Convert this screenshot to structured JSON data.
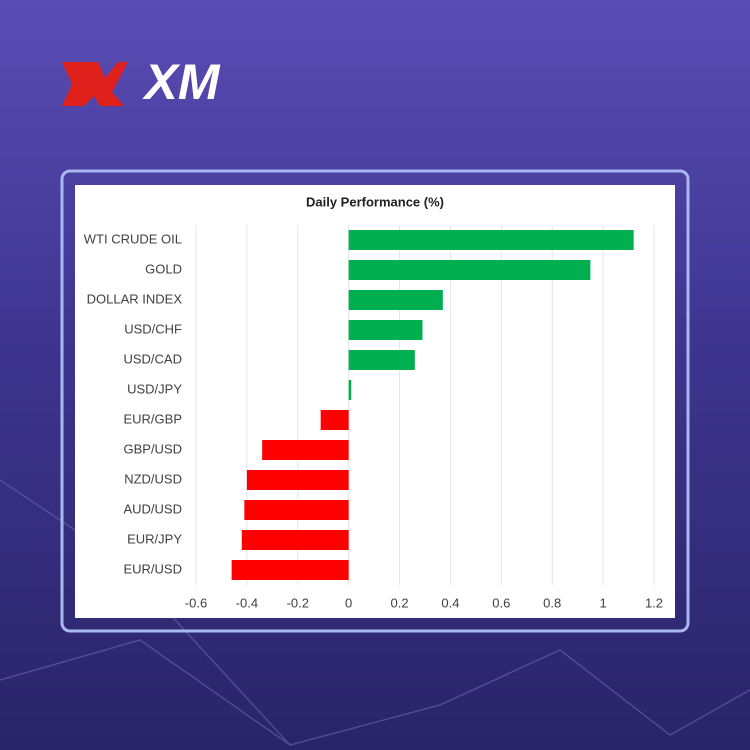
{
  "logo": "XM",
  "chart_data": {
    "type": "bar",
    "orientation": "horizontal",
    "title": "Daily Performance (%)",
    "categories": [
      "WTI CRUDE OIL",
      "GOLD",
      "DOLLAR INDEX",
      "USD/CHF",
      "USD/CAD",
      "USD/JPY",
      "EUR/GBP",
      "GBP/USD",
      "NZD/USD",
      "AUD/USD",
      "EUR/JPY",
      "EUR/USD"
    ],
    "values": [
      1.12,
      0.95,
      0.37,
      0.29,
      0.26,
      0.01,
      -0.11,
      -0.34,
      -0.4,
      -0.41,
      -0.42,
      -0.46
    ],
    "positive_color": "#00b050",
    "negative_color": "#ff0000",
    "xlim": [
      -0.6,
      1.2
    ],
    "xticks": [
      -0.6,
      -0.4,
      -0.2,
      0,
      0.2,
      0.4,
      0.6,
      0.8,
      1,
      1.2
    ],
    "grid": true
  }
}
